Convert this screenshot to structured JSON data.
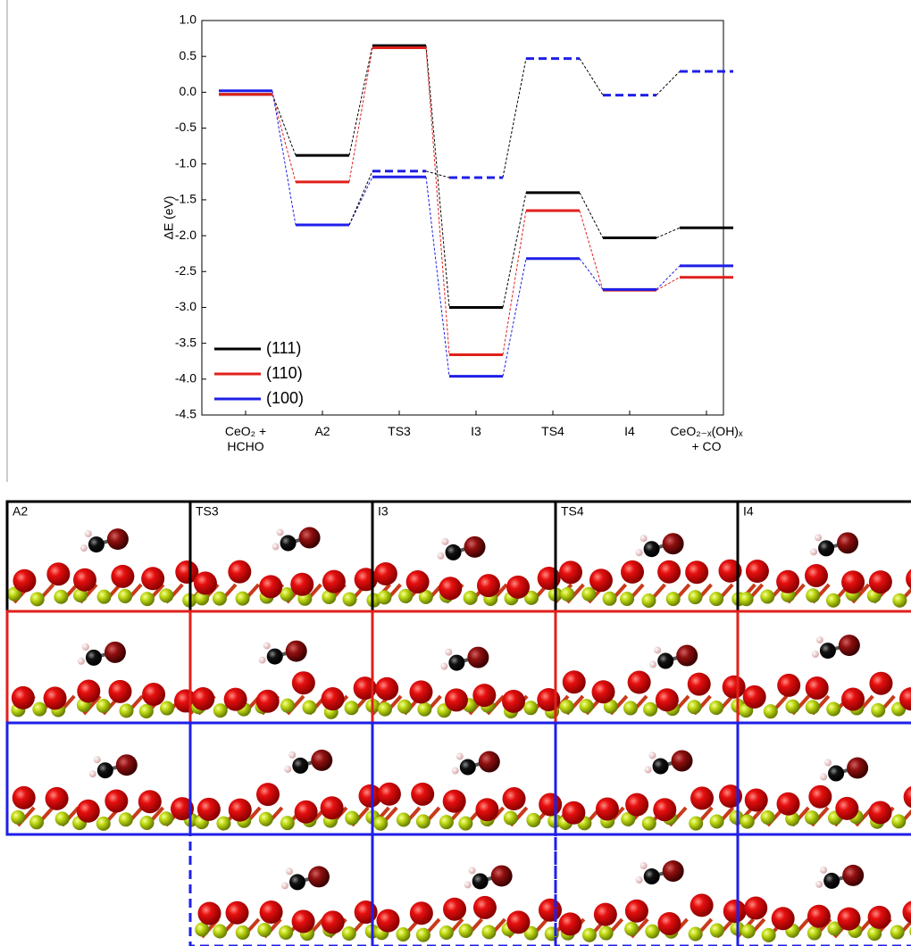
{
  "chart_data": {
    "type": "energy-profile",
    "y_label": "ΔE (eV)",
    "categories": [
      "CeO₂ +\nHCHO",
      "A2",
      "TS3",
      "I3",
      "TS4",
      "I4",
      "CeO₂₋ₓ(OH)ₓ\n+ CO"
    ],
    "ylim": [
      -4.5,
      1.0
    ],
    "yticks": [
      {
        "value": 1.0,
        "label": "1.0"
      },
      0.5,
      {
        "value": 0.0,
        "label": "0.0"
      },
      -0.5,
      {
        "value": -1.0,
        "label": "-1.0"
      },
      -1.5,
      {
        "value": -2.0,
        "label": "-2.0"
      },
      -2.5,
      {
        "value": -3.0,
        "label": "-3.0"
      },
      -3.5,
      {
        "value": -4.0,
        "label": "-4.0"
      },
      -4.5
    ],
    "series": [
      {
        "name": "(111)",
        "color": "#000000",
        "values": [
          -0.03,
          -0.88,
          0.65,
          -3.0,
          -1.4,
          -2.03,
          -1.89
        ]
      },
      {
        "name": "(110)",
        "color": "#e0201b",
        "values": [
          -0.03,
          -1.25,
          0.62,
          -3.66,
          -1.65,
          -2.76,
          -2.58
        ]
      },
      {
        "name": "(100)",
        "color": "#1f1fe8",
        "values": [
          0.02,
          -1.85,
          -1.18,
          -3.96,
          -2.32,
          -2.75,
          -2.42
        ]
      },
      {
        "color": "#1f1fe8",
        "dashed": true,
        "connector_color": "#000000",
        "values": [
          null,
          -1.85,
          -1.1,
          -1.19,
          0.47,
          -0.04,
          0.29
        ]
      }
    ],
    "legend": "lower left"
  },
  "panel_labels": [
    "A2",
    "TS3",
    "I3",
    "TS4",
    "I4"
  ]
}
